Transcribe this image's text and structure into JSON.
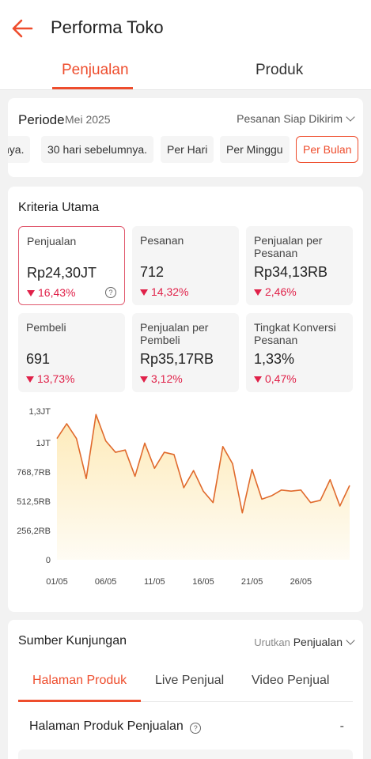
{
  "header": {
    "title": "Performa Toko"
  },
  "tabs": [
    {
      "label": "Penjualan",
      "active": true
    },
    {
      "label": "Produk",
      "active": false
    }
  ],
  "periode": {
    "label": "Periode",
    "value": "Mei 2025",
    "status_filter": "Pesanan Siap Dikirim",
    "chips": [
      "nya.",
      "30 hari sebelumnya.",
      "Per Hari",
      "Per Minggu",
      "Per Bulan"
    ],
    "selected_chip": "Per Bulan"
  },
  "kriteria": {
    "title": "Kriteria Utama",
    "metrics": [
      {
        "label": "Penjualan",
        "value": "Rp24,30JT",
        "change": "16,43%",
        "selected": true
      },
      {
        "label": "Pesanan",
        "value": "712",
        "change": "14,32%"
      },
      {
        "label": "Penjualan per Pesanan",
        "value": "Rp34,13RB",
        "change": "2,46%"
      },
      {
        "label": "Pembeli",
        "value": "691",
        "change": "13,73%"
      },
      {
        "label": "Penjualan per Pembeli",
        "value": "Rp35,17RB",
        "change": "3,12%"
      },
      {
        "label": "Tingkat Konversi Pesanan",
        "value": "1,33%",
        "change": "0,47%"
      }
    ]
  },
  "chart_data": {
    "type": "area",
    "y_tick_labels": [
      "1,3JT",
      "1JT",
      "768,7RB",
      "512,5RB",
      "256,2RB",
      "0"
    ],
    "y_ticks": [
      1300000,
      1025000,
      768700,
      512500,
      256200,
      0
    ],
    "ylim": [
      0,
      1300000
    ],
    "x_tick_labels": [
      "01/05",
      "06/05",
      "11/05",
      "16/05",
      "21/05",
      "26/05"
    ],
    "x": [
      1,
      2,
      3,
      4,
      5,
      6,
      7,
      8,
      9,
      10,
      11,
      12,
      13,
      14,
      15,
      16,
      17,
      18,
      19,
      20,
      21,
      22,
      23,
      24,
      25,
      26,
      27,
      28,
      29,
      30,
      31
    ],
    "values": [
      1060000,
      1190000,
      1060000,
      710000,
      1270000,
      1040000,
      940000,
      960000,
      730000,
      1020000,
      800000,
      940000,
      920000,
      630000,
      780000,
      600000,
      500000,
      990000,
      840000,
      410000,
      790000,
      530000,
      560000,
      610000,
      600000,
      610000,
      500000,
      520000,
      700000,
      470000,
      650000
    ],
    "line_color": "#e06a2c",
    "fill_color": "#fde9b4"
  },
  "sumber": {
    "title": "Sumber Kunjungan",
    "sort_prefix": "Urutkan",
    "sort_value": "Penjualan",
    "sub_tabs": [
      "Halaman Produk",
      "Live Penjual",
      "Video Penjual"
    ],
    "active_sub_tab": "Halaman Produk",
    "section_title": "Halaman Produk Penjualan",
    "section_value": "-"
  },
  "colors": {
    "accent": "#ee4d2d",
    "negative": "#e02149"
  }
}
